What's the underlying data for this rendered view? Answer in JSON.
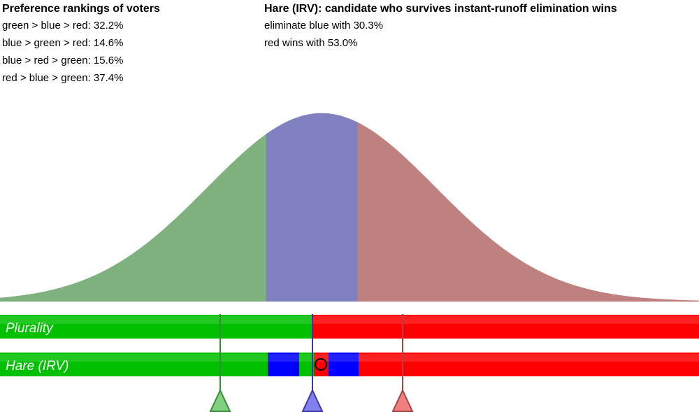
{
  "preferences": {
    "title": "Preference rankings of voters",
    "rankings": [
      "green > blue > red: 32.2%",
      "blue > green > red: 14.6%",
      "blue > red > green: 15.6%",
      "red > blue > green: 37.4%"
    ]
  },
  "result": {
    "title": "Hare (IRV): candidate who survives instant-runoff elimination wins",
    "lines": [
      "eliminate blue with 30.3%",
      "red wins with 53.0%"
    ]
  },
  "colors": {
    "green": "#7fb17f",
    "blue": "#8080c0",
    "red": "#bf817f",
    "bar_green": "#00c000",
    "bar_blue": "#0000ff",
    "bar_red": "#ff0000"
  },
  "bars": [
    {
      "label": "Plurality",
      "segments": [
        {
          "color": "green",
          "from": 0.0,
          "to": 0.446
        },
        {
          "color": "red",
          "from": 0.446,
          "to": 1.0
        }
      ]
    },
    {
      "label": "Hare (IRV)",
      "segments": [
        {
          "color": "green",
          "from": 0.0,
          "to": 0.383
        },
        {
          "color": "blue",
          "from": 0.383,
          "to": 0.428
        },
        {
          "color": "green",
          "from": 0.428,
          "to": 0.449
        },
        {
          "color": "red",
          "from": 0.449,
          "to": 0.47
        },
        {
          "color": "blue",
          "from": 0.47,
          "to": 0.513
        },
        {
          "color": "red",
          "from": 0.513,
          "to": 1.0
        }
      ]
    }
  ],
  "candidates": [
    {
      "name": "green",
      "position": 0.315
    },
    {
      "name": "blue",
      "position": 0.447
    },
    {
      "name": "red",
      "position": 0.576
    }
  ],
  "voter_distribution": {
    "mean": 0.46,
    "boundaries": [
      0.381,
      0.512
    ]
  },
  "median_voter": {
    "position": 0.459
  }
}
